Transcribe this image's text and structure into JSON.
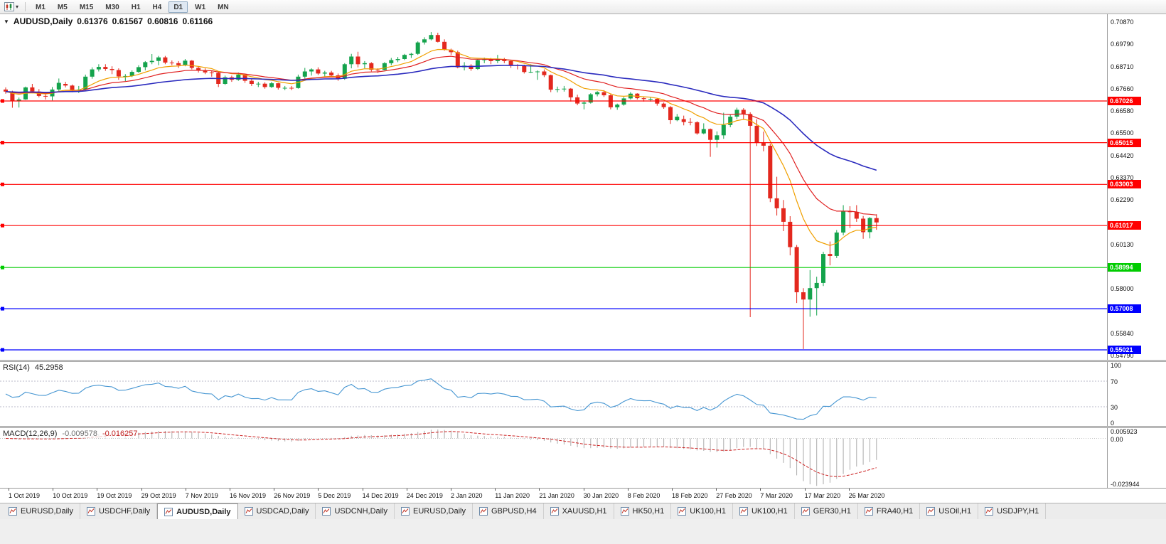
{
  "toolbar": {
    "timeframes": [
      "M1",
      "M5",
      "M15",
      "M30",
      "H1",
      "H4",
      "D1",
      "W1",
      "MN"
    ],
    "active_timeframe": "D1"
  },
  "chart": {
    "symbol_period": "AUDUSD,Daily",
    "open": "0.61376",
    "high": "0.61567",
    "low": "0.60816",
    "close": "0.61166",
    "price_axis_labels": [
      "0.70870",
      "0.69790",
      "0.68710",
      "0.67660",
      "0.66580",
      "0.65500",
      "0.64420",
      "0.63370",
      "0.62290",
      "0.60130",
      "0.58000",
      "0.55840",
      "0.54790"
    ],
    "levels": [
      {
        "price": 0.67026,
        "label": "0.67026",
        "color": "#FF0000"
      },
      {
        "price": 0.65015,
        "label": "0.65015",
        "color": "#FF0000"
      },
      {
        "price": 0.63003,
        "label": "0.63003",
        "color": "#FF0000"
      },
      {
        "price": 0.61017,
        "label": "0.61017",
        "color": "#FF0000"
      },
      {
        "price": 0.58994,
        "label": "0.58994",
        "color": "#00CC00"
      },
      {
        "price": 0.57008,
        "label": "0.57008",
        "color": "#0000FF"
      },
      {
        "price": 0.55021,
        "label": "0.55021",
        "color": "#0000FF"
      }
    ],
    "colors": {
      "up": "#14A34C",
      "down": "#E3281E",
      "ma_fast": "#F0A000",
      "ma_mid": "#E02020",
      "ma_slow": "#2B2BBE"
    }
  },
  "rsi_panel": {
    "label": "RSI(14)",
    "value": "45.2958",
    "period": 14,
    "levels": [
      70,
      30
    ],
    "axis_labels": [
      "100",
      "70",
      "30",
      "0"
    ],
    "line_color": "#4696D2"
  },
  "macd_panel": {
    "label": "MACD(12,26,9)",
    "value_main": "-0.009578",
    "value_signal": "-0.016257",
    "params": [
      12,
      26,
      9
    ],
    "axis_labels": [
      "0.005923",
      "0.00",
      "-0.023944"
    ],
    "histogram_color": "#ABABAB",
    "signal_color": "#CC2222"
  },
  "date_axis": [
    "1 Oct 2019",
    "10 Oct 2019",
    "19 Oct 2019",
    "29 Oct 2019",
    "7 Nov 2019",
    "16 Nov 2019",
    "26 Nov 2019",
    "5 Dec 2019",
    "14 Dec 2019",
    "24 Dec 2019",
    "2 Jan 2020",
    "11 Jan 2020",
    "21 Jan 2020",
    "30 Jan 2020",
    "8 Feb 2020",
    "18 Feb 2020",
    "27 Feb 2020",
    "7 Mar 2020",
    "17 Mar 2020",
    "26 Mar 2020"
  ],
  "tabs": {
    "active_index": 2,
    "items": [
      {
        "label": "EURUSD,Daily"
      },
      {
        "label": "USDCHF,Daily"
      },
      {
        "label": "AUDUSD,Daily"
      },
      {
        "label": "USDCAD,Daily"
      },
      {
        "label": "USDCNH,Daily"
      },
      {
        "label": "EURUSD,Daily"
      },
      {
        "label": "GBPUSD,H4"
      },
      {
        "label": "XAUUSD,H1"
      },
      {
        "label": "HK50,H1"
      },
      {
        "label": "UK100,H1"
      },
      {
        "label": "UK100,H1"
      },
      {
        "label": "GER30,H1"
      },
      {
        "label": "FRA40,H1"
      },
      {
        "label": "USOil,H1"
      },
      {
        "label": "USDJPY,H1"
      }
    ]
  },
  "chart_data": {
    "type": "candlestick",
    "symbol": "AUDUSD",
    "timeframe": "Daily",
    "visible_price_range": {
      "min": 0.54541,
      "max": 0.71211
    },
    "moving_averages": [
      {
        "period": 10,
        "color": "#F0A000",
        "width": 1.2
      },
      {
        "period": 20,
        "color": "#E02020",
        "width": 1.2
      },
      {
        "period": 50,
        "color": "#2B2BBE",
        "width": 1.6
      }
    ],
    "candles": [
      [
        0.6758,
        0.6768,
        0.6738,
        0.6748
      ],
      [
        0.6748,
        0.6752,
        0.667,
        0.6703
      ],
      [
        0.6703,
        0.6719,
        0.6671,
        0.671
      ],
      [
        0.671,
        0.6772,
        0.6708,
        0.6768
      ],
      [
        0.6768,
        0.6785,
        0.674,
        0.6748
      ],
      [
        0.6748,
        0.676,
        0.672,
        0.6727
      ],
      [
        0.6727,
        0.674,
        0.671,
        0.6725
      ],
      [
        0.6725,
        0.677,
        0.6705,
        0.6758
      ],
      [
        0.6758,
        0.6811,
        0.675,
        0.679
      ],
      [
        0.6785,
        0.6795,
        0.6768,
        0.6777
      ],
      [
        0.6777,
        0.6782,
        0.6745,
        0.6755
      ],
      [
        0.6755,
        0.6775,
        0.6741,
        0.6758
      ],
      [
        0.6758,
        0.683,
        0.6755,
        0.682
      ],
      [
        0.682,
        0.6865,
        0.681,
        0.6855
      ],
      [
        0.6855,
        0.688,
        0.6845,
        0.6867
      ],
      [
        0.6867,
        0.688,
        0.6848,
        0.6857
      ],
      [
        0.6857,
        0.687,
        0.6832,
        0.6852
      ],
      [
        0.6852,
        0.686,
        0.6805,
        0.6821
      ],
      [
        0.6821,
        0.6832,
        0.6798,
        0.6823
      ],
      [
        0.6823,
        0.685,
        0.6818,
        0.6843
      ],
      [
        0.6843,
        0.6875,
        0.6838,
        0.6866
      ],
      [
        0.6866,
        0.6895,
        0.685,
        0.689
      ],
      [
        0.689,
        0.6929,
        0.688,
        0.6896
      ],
      [
        0.6896,
        0.692,
        0.6875,
        0.6913
      ],
      [
        0.6913,
        0.692,
        0.688,
        0.6888
      ],
      [
        0.6888,
        0.6898,
        0.6875,
        0.6885
      ],
      [
        0.6885,
        0.6895,
        0.6862,
        0.6875
      ],
      [
        0.6875,
        0.6905,
        0.687,
        0.6897
      ],
      [
        0.6897,
        0.69,
        0.6855,
        0.6862
      ],
      [
        0.6862,
        0.687,
        0.684,
        0.685
      ],
      [
        0.685,
        0.686,
        0.6832,
        0.684
      ],
      [
        0.684,
        0.685,
        0.682,
        0.6838
      ],
      [
        0.6838,
        0.6845,
        0.677,
        0.6785
      ],
      [
        0.6785,
        0.6825,
        0.678,
        0.6817
      ],
      [
        0.6817,
        0.6825,
        0.6795,
        0.6805
      ],
      [
        0.6805,
        0.684,
        0.68,
        0.683
      ],
      [
        0.683,
        0.6835,
        0.679,
        0.68
      ],
      [
        0.68,
        0.681,
        0.6775,
        0.6785
      ],
      [
        0.6785,
        0.6795,
        0.677,
        0.6786
      ],
      [
        0.6786,
        0.6793,
        0.6762,
        0.677
      ],
      [
        0.677,
        0.6795,
        0.6765,
        0.6788
      ],
      [
        0.6788,
        0.679,
        0.6758,
        0.6766
      ],
      [
        0.6766,
        0.6775,
        0.6755,
        0.6766
      ],
      [
        0.6766,
        0.6775,
        0.6755,
        0.6765
      ],
      [
        0.6765,
        0.683,
        0.6762,
        0.682
      ],
      [
        0.682,
        0.6862,
        0.681,
        0.6845
      ],
      [
        0.6845,
        0.686,
        0.6825,
        0.6855
      ],
      [
        0.6855,
        0.6865,
        0.6828,
        0.6835
      ],
      [
        0.6835,
        0.6848,
        0.682,
        0.684
      ],
      [
        0.684,
        0.6848,
        0.6818,
        0.6826
      ],
      [
        0.6826,
        0.6835,
        0.68,
        0.681
      ],
      [
        0.681,
        0.6885,
        0.6805,
        0.688
      ],
      [
        0.688,
        0.693,
        0.686,
        0.6917
      ],
      [
        0.6917,
        0.694,
        0.6865,
        0.688
      ],
      [
        0.688,
        0.6895,
        0.686,
        0.6885
      ],
      [
        0.6885,
        0.689,
        0.6845,
        0.6853
      ],
      [
        0.6853,
        0.686,
        0.6838,
        0.6852
      ],
      [
        0.6852,
        0.689,
        0.685,
        0.6885
      ],
      [
        0.6885,
        0.691,
        0.6875,
        0.69
      ],
      [
        0.69,
        0.6915,
        0.689,
        0.6905
      ],
      [
        0.6905,
        0.693,
        0.69,
        0.6925
      ],
      [
        0.6925,
        0.6935,
        0.691,
        0.693
      ],
      [
        0.693,
        0.699,
        0.6925,
        0.6985
      ],
      [
        0.6985,
        0.701,
        0.6975,
        0.7
      ],
      [
        0.7,
        0.7035,
        0.6995,
        0.7021
      ],
      [
        0.7021,
        0.7032,
        0.6985,
        0.6988
      ],
      [
        0.6988,
        0.7,
        0.6945,
        0.695
      ],
      [
        0.695,
        0.6955,
        0.6925,
        0.6938
      ],
      [
        0.6938,
        0.6945,
        0.686,
        0.6865
      ],
      [
        0.6865,
        0.689,
        0.685,
        0.6873
      ],
      [
        0.6873,
        0.688,
        0.6848,
        0.6857
      ],
      [
        0.6857,
        0.6905,
        0.6853,
        0.69
      ],
      [
        0.69,
        0.6912,
        0.6885,
        0.6903
      ],
      [
        0.6903,
        0.691,
        0.688,
        0.6895
      ],
      [
        0.6895,
        0.6925,
        0.6885,
        0.6905
      ],
      [
        0.6905,
        0.691,
        0.6885,
        0.6895
      ],
      [
        0.6895,
        0.69,
        0.6862,
        0.6875
      ],
      [
        0.6875,
        0.688,
        0.6855,
        0.6873
      ],
      [
        0.6873,
        0.6878,
        0.6835,
        0.6842
      ],
      [
        0.6842,
        0.688,
        0.6838,
        0.6843
      ],
      [
        0.6843,
        0.685,
        0.6805,
        0.6845
      ],
      [
        0.6845,
        0.6855,
        0.6818,
        0.6827
      ],
      [
        0.6827,
        0.683,
        0.6745,
        0.6757
      ],
      [
        0.6757,
        0.6772,
        0.6744,
        0.676
      ],
      [
        0.676,
        0.6775,
        0.6748,
        0.6762
      ],
      [
        0.6762,
        0.6765,
        0.67,
        0.672
      ],
      [
        0.672,
        0.6733,
        0.6682,
        0.669
      ],
      [
        0.669,
        0.6703,
        0.6662,
        0.6695
      ],
      [
        0.6695,
        0.674,
        0.669,
        0.6735
      ],
      [
        0.6735,
        0.675,
        0.6725,
        0.6745
      ],
      [
        0.6745,
        0.6755,
        0.6722,
        0.673
      ],
      [
        0.673,
        0.6735,
        0.6662,
        0.6672
      ],
      [
        0.6672,
        0.669,
        0.666,
        0.6685
      ],
      [
        0.6685,
        0.6722,
        0.668,
        0.6715
      ],
      [
        0.6715,
        0.6745,
        0.671,
        0.6738
      ],
      [
        0.6738,
        0.674,
        0.671,
        0.6716
      ],
      [
        0.6716,
        0.6725,
        0.67,
        0.6712
      ],
      [
        0.6712,
        0.672,
        0.67,
        0.6713
      ],
      [
        0.6713,
        0.6715,
        0.668,
        0.669
      ],
      [
        0.669,
        0.6695,
        0.6665,
        0.6673
      ],
      [
        0.6673,
        0.6678,
        0.6592,
        0.661
      ],
      [
        0.661,
        0.664,
        0.6605,
        0.6627
      ],
      [
        0.6615,
        0.6632,
        0.6585,
        0.6601
      ],
      [
        0.6601,
        0.662,
        0.6585,
        0.66
      ],
      [
        0.66,
        0.6605,
        0.654,
        0.6546
      ],
      [
        0.6546,
        0.6595,
        0.6542,
        0.6567
      ],
      [
        0.6567,
        0.657,
        0.6433,
        0.6515
      ],
      [
        0.6515,
        0.6556,
        0.6478,
        0.6537
      ],
      [
        0.6537,
        0.6646,
        0.652,
        0.6587
      ],
      [
        0.6587,
        0.6637,
        0.6576,
        0.6627
      ],
      [
        0.6627,
        0.667,
        0.6615,
        0.666
      ],
      [
        0.666,
        0.6668,
        0.6612,
        0.664
      ],
      [
        0.664,
        0.6648,
        0.566,
        0.6583
      ],
      [
        0.6583,
        0.6614,
        0.6485,
        0.65
      ],
      [
        0.65,
        0.6555,
        0.646,
        0.6487
      ],
      [
        0.6487,
        0.6497,
        0.6215,
        0.6233
      ],
      [
        0.6233,
        0.6337,
        0.615,
        0.6185
      ],
      [
        0.6185,
        0.6225,
        0.6075,
        0.612
      ],
      [
        0.612,
        0.6147,
        0.5958,
        0.5998
      ],
      [
        0.5998,
        0.6008,
        0.5728,
        0.578
      ],
      [
        0.578,
        0.58,
        0.5506,
        0.5745
      ],
      [
        0.5745,
        0.5887,
        0.5662,
        0.58
      ],
      [
        0.58,
        0.5855,
        0.5668,
        0.5825
      ],
      [
        0.5825,
        0.5975,
        0.581,
        0.5965
      ],
      [
        0.5965,
        0.6025,
        0.591,
        0.5955
      ],
      [
        0.5955,
        0.608,
        0.5945,
        0.6068
      ],
      [
        0.6068,
        0.62,
        0.6055,
        0.617
      ],
      [
        0.617,
        0.6195,
        0.609,
        0.6168
      ],
      [
        0.6168,
        0.62,
        0.612,
        0.6135
      ],
      [
        0.6135,
        0.6148,
        0.6038,
        0.607
      ],
      [
        0.607,
        0.6143,
        0.604,
        0.6138
      ],
      [
        0.61376,
        0.61567,
        0.60816,
        0.61166
      ]
    ]
  }
}
